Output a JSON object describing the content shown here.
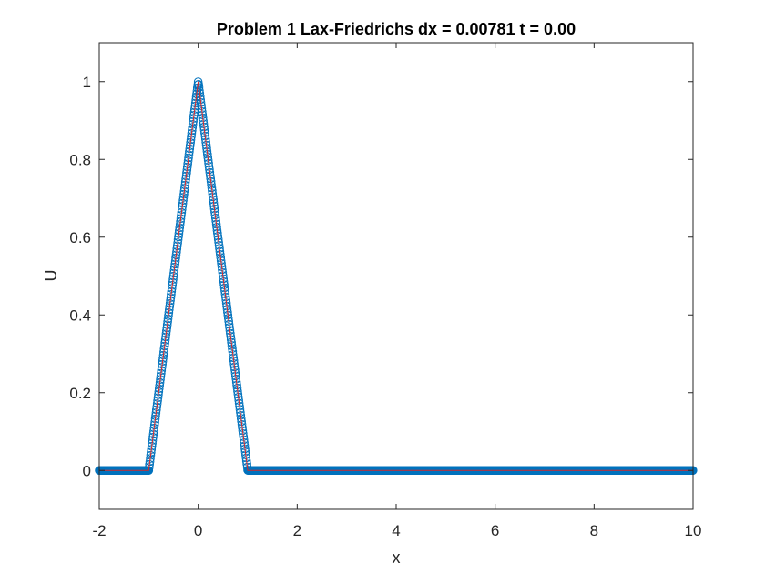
{
  "chart_data": {
    "type": "line",
    "title": "Problem 1 Lax-Friedrichs  dx = 0.00781 t = 0.00",
    "xlabel": "x",
    "ylabel": "U",
    "xlim": [
      -2,
      10
    ],
    "ylim": [
      -0.1,
      1.1
    ],
    "xticks": [
      -2,
      0,
      2,
      4,
      6,
      8,
      10
    ],
    "yticks": [
      0,
      0.2,
      0.4,
      0.6,
      0.8,
      1
    ],
    "xtick_labels": [
      "-2",
      "0",
      "2",
      "4",
      "6",
      "8",
      "10"
    ],
    "ytick_labels": [
      "0",
      "0.2",
      "0.4",
      "0.6",
      "0.8",
      "1"
    ],
    "grid": false,
    "dx": 0.00781,
    "series": [
      {
        "marker": "circle",
        "line": "none",
        "color": "#0072bd",
        "x": [
          -2,
          -1,
          0,
          1,
          10
        ],
        "y": [
          0,
          0,
          1,
          0,
          0
        ]
      },
      {
        "marker": "none",
        "line": "solid",
        "color": "#d62728",
        "x": [
          -2,
          -1,
          0,
          1,
          10
        ],
        "y": [
          0,
          0,
          1,
          0,
          0
        ]
      }
    ]
  }
}
